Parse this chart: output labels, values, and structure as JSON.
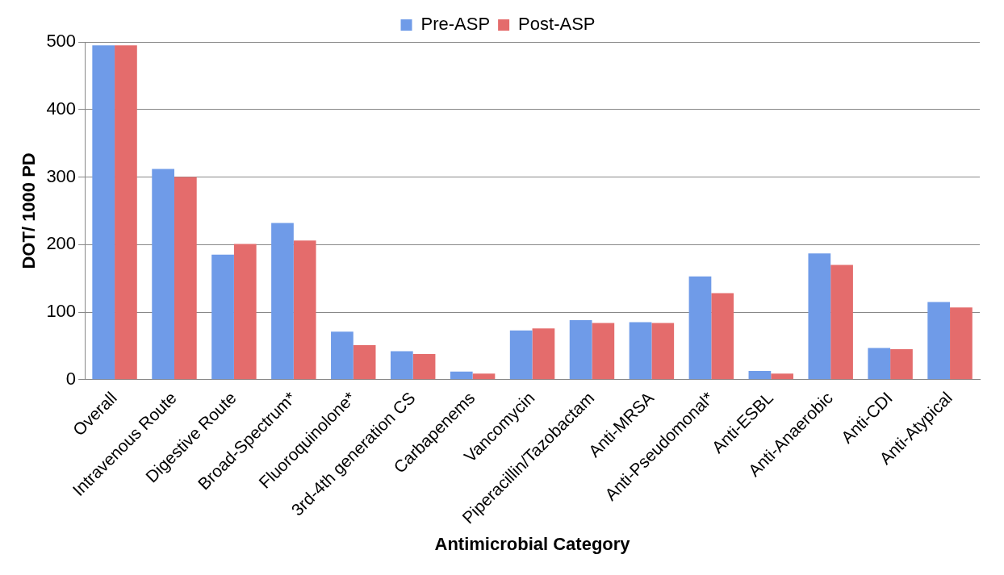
{
  "chart_data": {
    "type": "bar",
    "xlabel": "Antimicrobial Category",
    "ylabel": "DOT/ 1000 PD",
    "categories": [
      "Overall",
      "Intravenous Route",
      "Digestive Route",
      "Broad-Spectrum*",
      "Fluoroquinolone*",
      "3rd-4th generation CS",
      "Carbapenems",
      "Vancomycin",
      "Piperacillin/Tazobactam",
      "Anti-MRSA",
      "Anti-Pseudomonal*",
      "Anti-ESBL",
      "Anti-Anaerobic",
      "Anti-CDI",
      "Anti-Atypical"
    ],
    "series": [
      {
        "name": "Pre-ASP",
        "color": "#6f9be8",
        "values": [
          495,
          312,
          185,
          232,
          71,
          42,
          12,
          73,
          88,
          85,
          153,
          13,
          187,
          47,
          115
        ]
      },
      {
        "name": "Post-ASP",
        "color": "#e46c6c",
        "values": [
          495,
          300,
          201,
          206,
          51,
          38,
          9,
          76,
          84,
          84,
          128,
          9,
          170,
          45,
          107
        ]
      }
    ],
    "ylim": [
      0,
      500
    ],
    "yticks": [
      0,
      100,
      200,
      300,
      400,
      500
    ],
    "grid": "y",
    "legend": "top"
  }
}
